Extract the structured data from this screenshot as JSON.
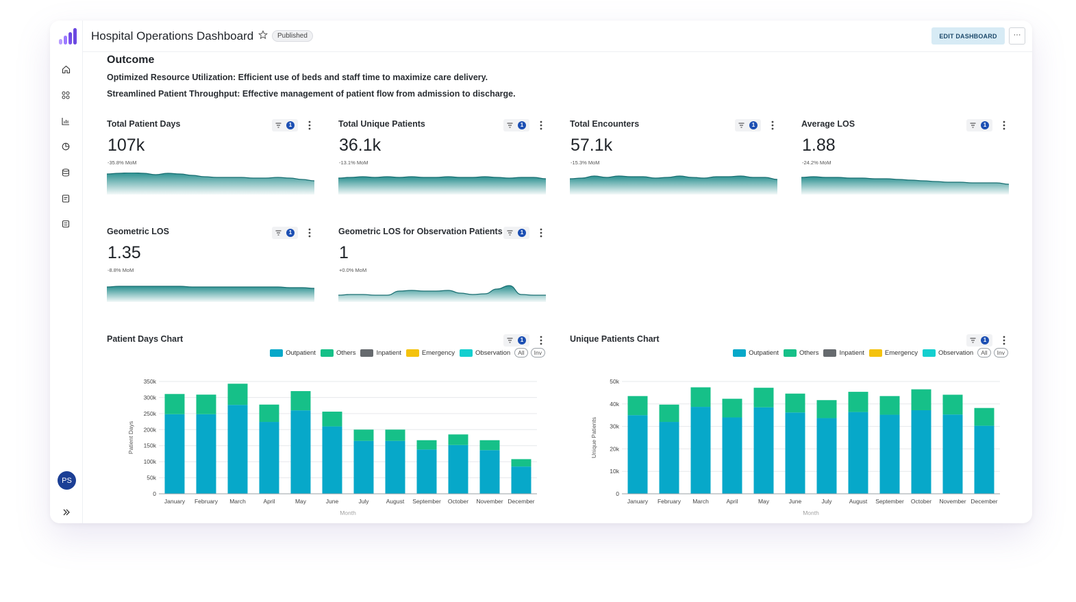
{
  "header": {
    "title": "Hospital Operations Dashboard",
    "status": "Published",
    "edit_label": "EDIT DASHBOARD",
    "more_label": "···"
  },
  "sidebar": {
    "items": [
      "home-icon",
      "apps-icon",
      "bar-chart-icon",
      "pie-chart-icon",
      "database-icon",
      "document-icon",
      "dataset-icon"
    ],
    "avatar_initials": "PS"
  },
  "outcome": {
    "title": "Outcome",
    "lines": [
      "Optimized Resource Utilization: Efficient use of beds and staff time to maximize care delivery.",
      "Streamlined Patient Throughput: Effective management of patient flow from admission to discharge."
    ]
  },
  "kpis": [
    {
      "title": "Total Patient Days",
      "value": "107k",
      "mom": "-35.8% MoM",
      "filter_count": "1",
      "trend": [
        30,
        31,
        32,
        31,
        29,
        31,
        30,
        28,
        26,
        25,
        25,
        25,
        24,
        24,
        25,
        24,
        22,
        20
      ]
    },
    {
      "title": "Total Unique Patients",
      "value": "36.1k",
      "mom": "-13.1% MoM",
      "filter_count": "1",
      "trend": [
        24,
        25,
        26,
        25,
        26,
        25,
        26,
        25,
        25,
        26,
        25,
        25,
        26,
        25,
        24,
        25,
        25,
        23
      ]
    },
    {
      "title": "Total Encounters",
      "value": "57.1k",
      "mom": "-15.3% MoM",
      "filter_count": "1",
      "trend": [
        23,
        24,
        27,
        25,
        27,
        26,
        26,
        24,
        25,
        27,
        25,
        24,
        26,
        26,
        27,
        25,
        25,
        22
      ]
    },
    {
      "title": "Average LOS",
      "value": "1.88",
      "mom": "-24.2% MoM",
      "filter_count": "1",
      "trend": [
        25,
        26,
        25,
        25,
        24,
        24,
        23,
        23,
        22,
        21,
        20,
        19,
        18,
        18,
        17,
        17,
        17,
        15
      ]
    },
    {
      "title": "Geometric LOS",
      "value": "1.35",
      "mom": "-8.8% MoM",
      "filter_count": "1",
      "trend": [
        22,
        23,
        23,
        23,
        23,
        23,
        23,
        22,
        22,
        22,
        22,
        22,
        22,
        22,
        22,
        21,
        21,
        20
      ]
    },
    {
      "title": "Geometric LOS for Observation Patients",
      "value": "1",
      "mom": "+0.0% MoM",
      "filter_count": "1",
      "trend": [
        10,
        11,
        11,
        10,
        10,
        16,
        17,
        16,
        16,
        17,
        13,
        11,
        12,
        19,
        24,
        11,
        10,
        10
      ]
    }
  ],
  "legend": {
    "items": [
      {
        "label": "Outpatient",
        "color": "#07a8c9"
      },
      {
        "label": "Others",
        "color": "#16c088"
      },
      {
        "label": "Inpatient",
        "color": "#666a6e"
      },
      {
        "label": "Emergency",
        "color": "#f4c20d"
      },
      {
        "label": "Observation",
        "color": "#14cfcf"
      }
    ],
    "all_label": "All",
    "inv_label": "Inv"
  },
  "chart_data": [
    {
      "type": "bar",
      "title": "Patient Days Chart",
      "xlabel": "Month",
      "ylabel": "Patient Days",
      "ylim": [
        0,
        350000
      ],
      "yticks": [
        "0",
        "50k",
        "100k",
        "150k",
        "200k",
        "250k",
        "300k",
        "350k"
      ],
      "categories": [
        "January",
        "February",
        "March",
        "April",
        "May",
        "June",
        "July",
        "August",
        "September",
        "October",
        "November",
        "December"
      ],
      "series": [
        {
          "name": "Outpatient",
          "values": [
            248000,
            248000,
            277000,
            224000,
            260000,
            210000,
            165000,
            165000,
            138000,
            152000,
            136000,
            85000
          ]
        },
        {
          "name": "Others",
          "values": [
            63000,
            61000,
            66000,
            54000,
            60000,
            46000,
            35000,
            35000,
            29000,
            33000,
            31000,
            23000
          ]
        }
      ],
      "stacked": true,
      "grid": true,
      "legend_position": "top-right",
      "filter_count": "1"
    },
    {
      "type": "bar",
      "title": "Unique Patients Chart",
      "xlabel": "Month",
      "ylabel": "Unique Patients",
      "ylim": [
        0,
        50000
      ],
      "yticks": [
        "0",
        "10k",
        "20k",
        "30k",
        "40k",
        "50k"
      ],
      "categories": [
        "January",
        "February",
        "March",
        "April",
        "May",
        "June",
        "July",
        "August",
        "September",
        "October",
        "November",
        "December"
      ],
      "series": [
        {
          "name": "Outpatient",
          "values": [
            35000,
            32000,
            38700,
            34000,
            38500,
            36200,
            33700,
            36400,
            35200,
            37200,
            35300,
            30300
          ]
        },
        {
          "name": "Others",
          "values": [
            8500,
            7700,
            8700,
            8300,
            8700,
            8400,
            8000,
            9000,
            8300,
            9300,
            8800,
            7900
          ]
        }
      ],
      "stacked": true,
      "grid": true,
      "legend_position": "top-right",
      "filter_count": "1"
    }
  ]
}
